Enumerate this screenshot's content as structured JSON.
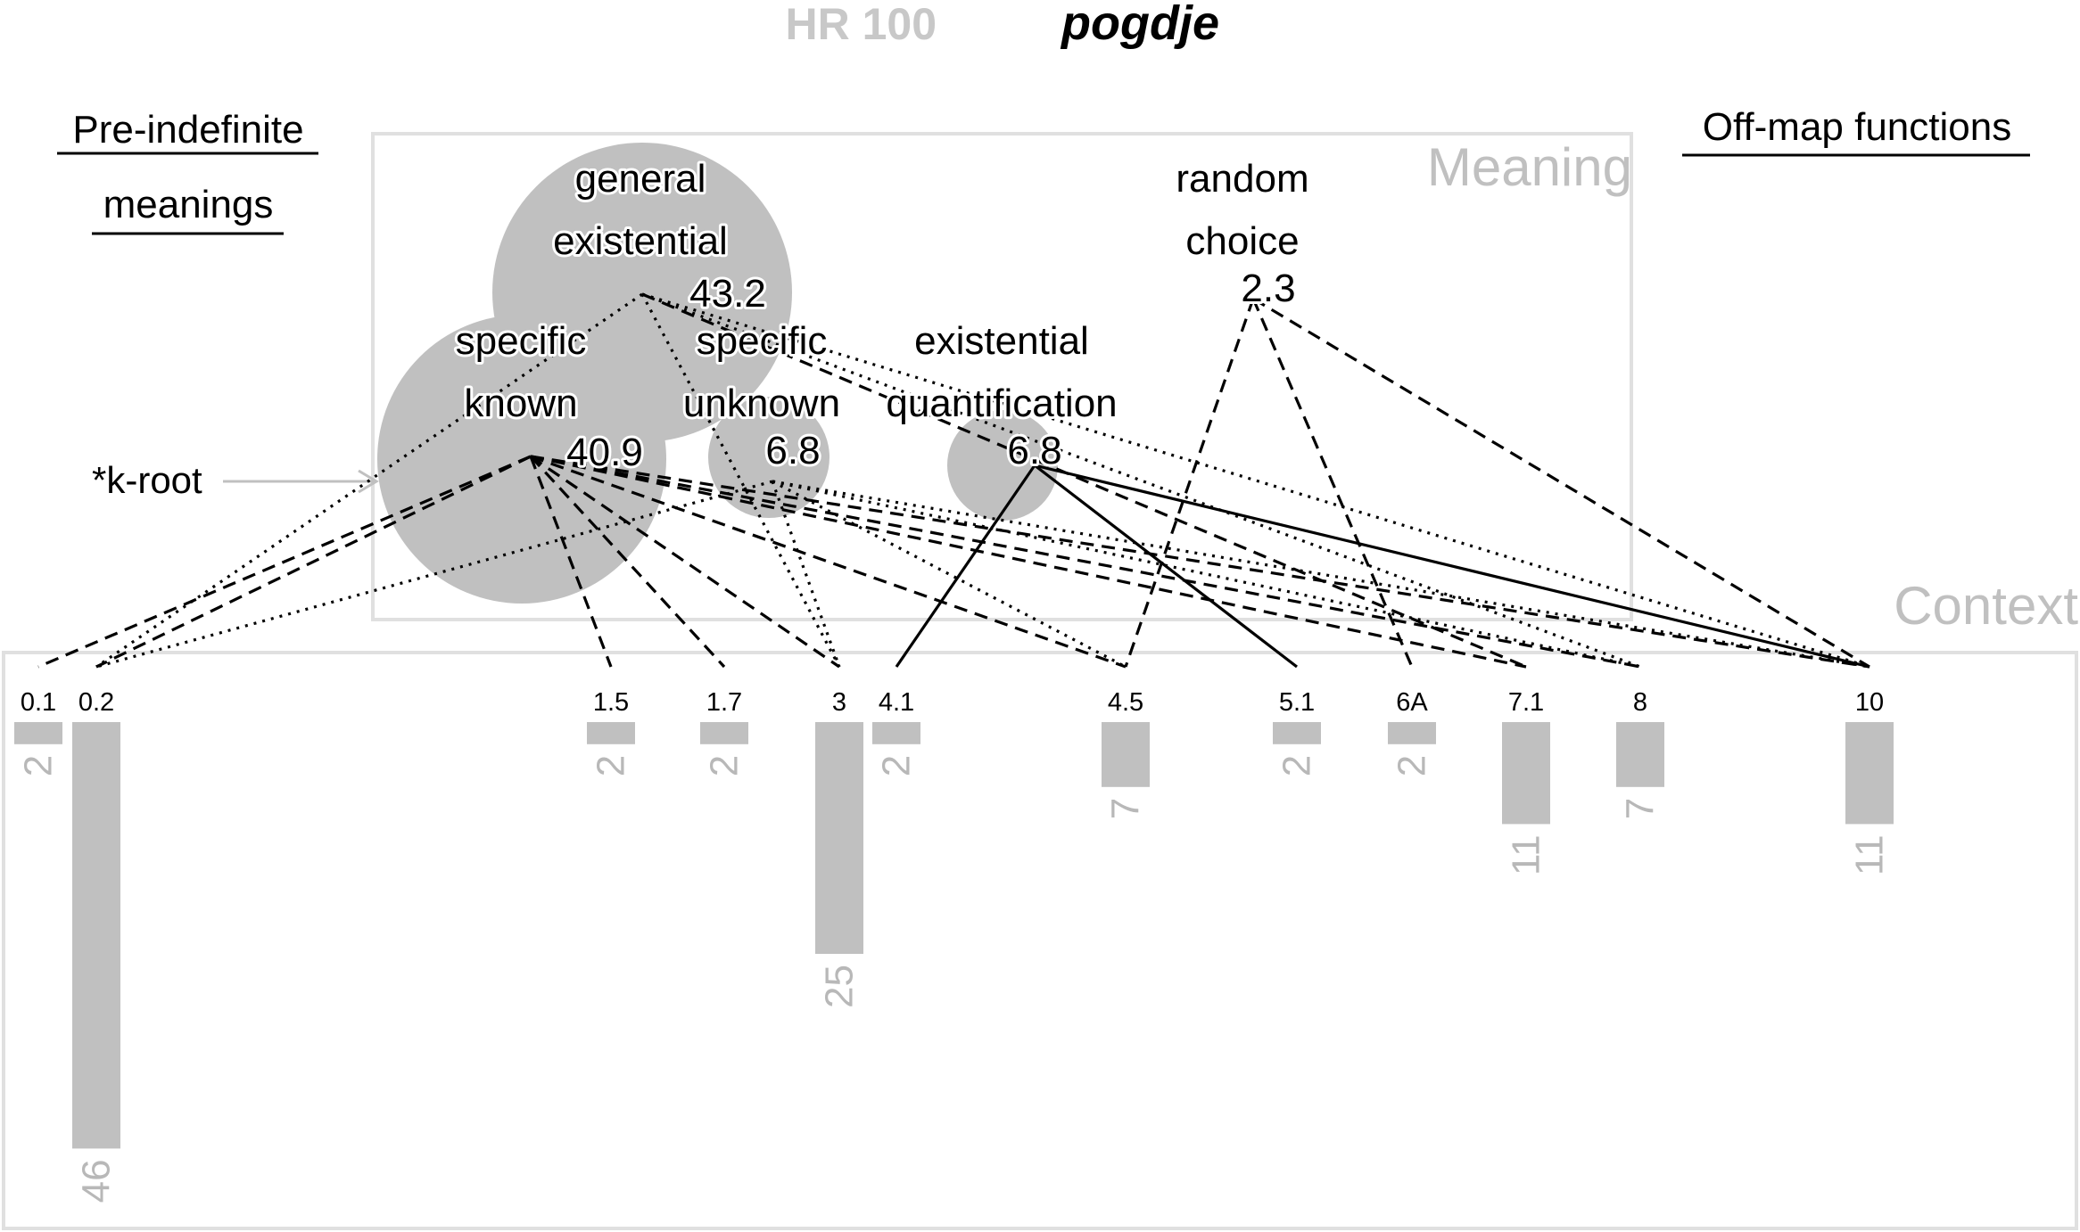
{
  "title": {
    "code": "HR 100",
    "word": "pogdje"
  },
  "headings": {
    "pre_indefinite_line1": "Pre-indefinite",
    "pre_indefinite_line2": "meanings",
    "off_map": "Off-map functions"
  },
  "panel_labels": {
    "meaning": "Meaning",
    "context": "Context"
  },
  "root_label": "*k-root",
  "meanings": [
    {
      "id": "general_existential",
      "lines": [
        "general",
        "existential"
      ],
      "value": "43.2",
      "circle": true
    },
    {
      "id": "specific_known",
      "lines": [
        "specific",
        "known"
      ],
      "value": "40.9",
      "circle": true
    },
    {
      "id": "specific_unknown",
      "lines": [
        "specific",
        "unknown"
      ],
      "value": "6.8",
      "circle": true
    },
    {
      "id": "existential_quantification",
      "lines": [
        "existential",
        "quantification"
      ],
      "value": "6.8",
      "circle": true
    },
    {
      "id": "random_choice",
      "lines": [
        "random",
        "choice"
      ],
      "value": "2.3",
      "circle": false
    }
  ],
  "contexts": [
    {
      "label": "0.1",
      "count": 2
    },
    {
      "label": "0.2",
      "count": 46
    },
    {
      "label": "1.5",
      "count": 2
    },
    {
      "label": "1.7",
      "count": 2
    },
    {
      "label": "3",
      "count": 25
    },
    {
      "label": "4.1",
      "count": 2
    },
    {
      "label": "4.5",
      "count": 7
    },
    {
      "label": "5.1",
      "count": 2
    },
    {
      "label": "6A",
      "count": 2
    },
    {
      "label": "7.1",
      "count": 11
    },
    {
      "label": "8",
      "count": 7
    },
    {
      "label": "10",
      "count": 11
    }
  ],
  "links": [
    {
      "from": "general_existential",
      "to": "0.2",
      "style": "dotted"
    },
    {
      "from": "general_existential",
      "to": "3",
      "style": "dotted"
    },
    {
      "from": "general_existential",
      "to": "7.1",
      "style": "dashed"
    },
    {
      "from": "general_existential",
      "to": "8",
      "style": "dotted"
    },
    {
      "from": "general_existential",
      "to": "10",
      "style": "dotted"
    },
    {
      "from": "specific_known",
      "to": "0.1",
      "style": "dashed"
    },
    {
      "from": "specific_known",
      "to": "0.2",
      "style": "dashed"
    },
    {
      "from": "specific_known",
      "to": "1.5",
      "style": "dashed"
    },
    {
      "from": "specific_known",
      "to": "1.7",
      "style": "dashed"
    },
    {
      "from": "specific_known",
      "to": "3",
      "style": "dashed"
    },
    {
      "from": "specific_known",
      "to": "4.5",
      "style": "dashed"
    },
    {
      "from": "specific_known",
      "to": "7.1",
      "style": "dashed"
    },
    {
      "from": "specific_known",
      "to": "8",
      "style": "dashed"
    },
    {
      "from": "specific_known",
      "to": "10",
      "style": "dashed"
    },
    {
      "from": "specific_unknown",
      "to": "0.2",
      "style": "dotted"
    },
    {
      "from": "specific_unknown",
      "to": "3",
      "style": "dotted"
    },
    {
      "from": "specific_unknown",
      "to": "4.5",
      "style": "dotted"
    },
    {
      "from": "specific_unknown",
      "to": "8",
      "style": "dotted"
    },
    {
      "from": "specific_unknown",
      "to": "10",
      "style": "dotted"
    },
    {
      "from": "existential_quantification",
      "to": "4.1",
      "style": "solid"
    },
    {
      "from": "existential_quantification",
      "to": "5.1",
      "style": "solid"
    },
    {
      "from": "existential_quantification",
      "to": "10",
      "style": "solid"
    },
    {
      "from": "random_choice",
      "to": "4.5",
      "style": "dashed"
    },
    {
      "from": "random_choice",
      "to": "6A",
      "style": "dashed"
    },
    {
      "from": "random_choice",
      "to": "10",
      "style": "dashed"
    }
  ],
  "colors": {
    "circle": "#c0c0c0",
    "bar": "#c0c0c0",
    "frame": "#e0e0e0",
    "muted_text": "#b8b8b8",
    "ink": "#000000"
  }
}
